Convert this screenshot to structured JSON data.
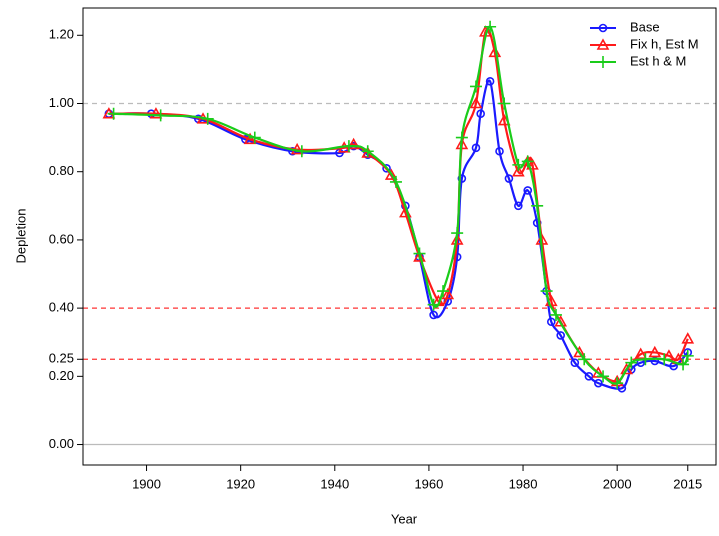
{
  "chart_data": {
    "type": "line",
    "x_label": "Year",
    "y_label": "Depletion",
    "xlim": [
      1886.5,
      2021
    ],
    "xticks": [
      1900,
      1920,
      1940,
      1960,
      1980,
      2000,
      2015
    ],
    "ylim": [
      -0.06,
      1.28
    ],
    "yticks": [
      {
        "value": 0,
        "label": "0.00"
      },
      {
        "value": 0.2,
        "label": "0.20"
      },
      {
        "value": 0.25,
        "label": "0.25"
      },
      {
        "value": 0.4,
        "label": "0.40"
      },
      {
        "value": 0.6,
        "label": "0.60"
      },
      {
        "value": 0.8,
        "label": "0.80"
      },
      {
        "value": 1,
        "label": "1.00"
      },
      {
        "value": 1.2,
        "label": "1.20"
      }
    ],
    "hlines": [
      {
        "value": 1,
        "color": "#bbbbbb",
        "dashed": true
      },
      {
        "value": 0.4,
        "color": "#ff3333",
        "dashed": true
      },
      {
        "value": 0.25,
        "color": "#ff3333",
        "dashed": true
      },
      {
        "value": 0,
        "color": "#bbbbbb",
        "dashed": false
      }
    ],
    "legend": "top-right",
    "series": [
      {
        "name": "Base",
        "color": "#1a1aff",
        "marker": "circle",
        "x": [
          1892,
          1901,
          1911,
          1921,
          1931,
          1941,
          1944,
          1947,
          1951,
          1955,
          1958,
          1961,
          1964,
          1966,
          1967,
          1970,
          1971,
          1973,
          1975,
          1977,
          1979,
          1981,
          1983,
          1985,
          1986,
          1988,
          1991,
          1994,
          1996,
          2001,
          2003,
          2005,
          2008,
          2012,
          2015
        ],
        "values": [
          0.97,
          0.97,
          0.955,
          0.895,
          0.86,
          0.855,
          0.875,
          0.85,
          0.81,
          0.7,
          0.55,
          0.38,
          0.42,
          0.55,
          0.78,
          0.87,
          0.97,
          1.065,
          0.86,
          0.78,
          0.7,
          0.745,
          0.65,
          0.45,
          0.36,
          0.32,
          0.24,
          0.2,
          0.18,
          0.165,
          0.22,
          0.24,
          0.245,
          0.23,
          0.27
        ]
      },
      {
        "name": "Fix h, Est M",
        "color": "#ff1a1a",
        "marker": "triangle",
        "x": [
          1892,
          1902,
          1912,
          1922,
          1932,
          1942,
          1944,
          1947,
          1952,
          1955,
          1958,
          1962,
          1964,
          1966,
          1967,
          1970,
          1972,
          1974,
          1976,
          1979,
          1981,
          1982,
          1984,
          1986,
          1988,
          1992,
          1996,
          2000,
          2002,
          2005,
          2008,
          2011,
          2013,
          2015
        ],
        "values": [
          0.97,
          0.97,
          0.955,
          0.895,
          0.865,
          0.87,
          0.88,
          0.855,
          0.79,
          0.68,
          0.55,
          0.42,
          0.44,
          0.6,
          0.88,
          1.0,
          1.21,
          1.15,
          0.95,
          0.8,
          0.83,
          0.82,
          0.6,
          0.42,
          0.36,
          0.27,
          0.21,
          0.185,
          0.22,
          0.265,
          0.27,
          0.26,
          0.25,
          0.31
        ]
      },
      {
        "name": "Est h & M",
        "color": "#1acc1a",
        "marker": "plus",
        "x": [
          1893,
          1903,
          1913,
          1923,
          1933,
          1943,
          1947,
          1953,
          1958,
          1961,
          1963,
          1966,
          1967,
          1970,
          1973,
          1976,
          1979,
          1981,
          1983,
          1985,
          1987,
          1993,
          1997,
          2000,
          2003,
          2006,
          2010,
          2014,
          2015
        ],
        "values": [
          0.97,
          0.965,
          0.955,
          0.9,
          0.86,
          0.875,
          0.86,
          0.77,
          0.56,
          0.41,
          0.45,
          0.62,
          0.9,
          1.05,
          1.225,
          1.0,
          0.82,
          0.83,
          0.7,
          0.45,
          0.38,
          0.25,
          0.2,
          0.18,
          0.24,
          0.25,
          0.25,
          0.235,
          0.26
        ]
      }
    ]
  }
}
